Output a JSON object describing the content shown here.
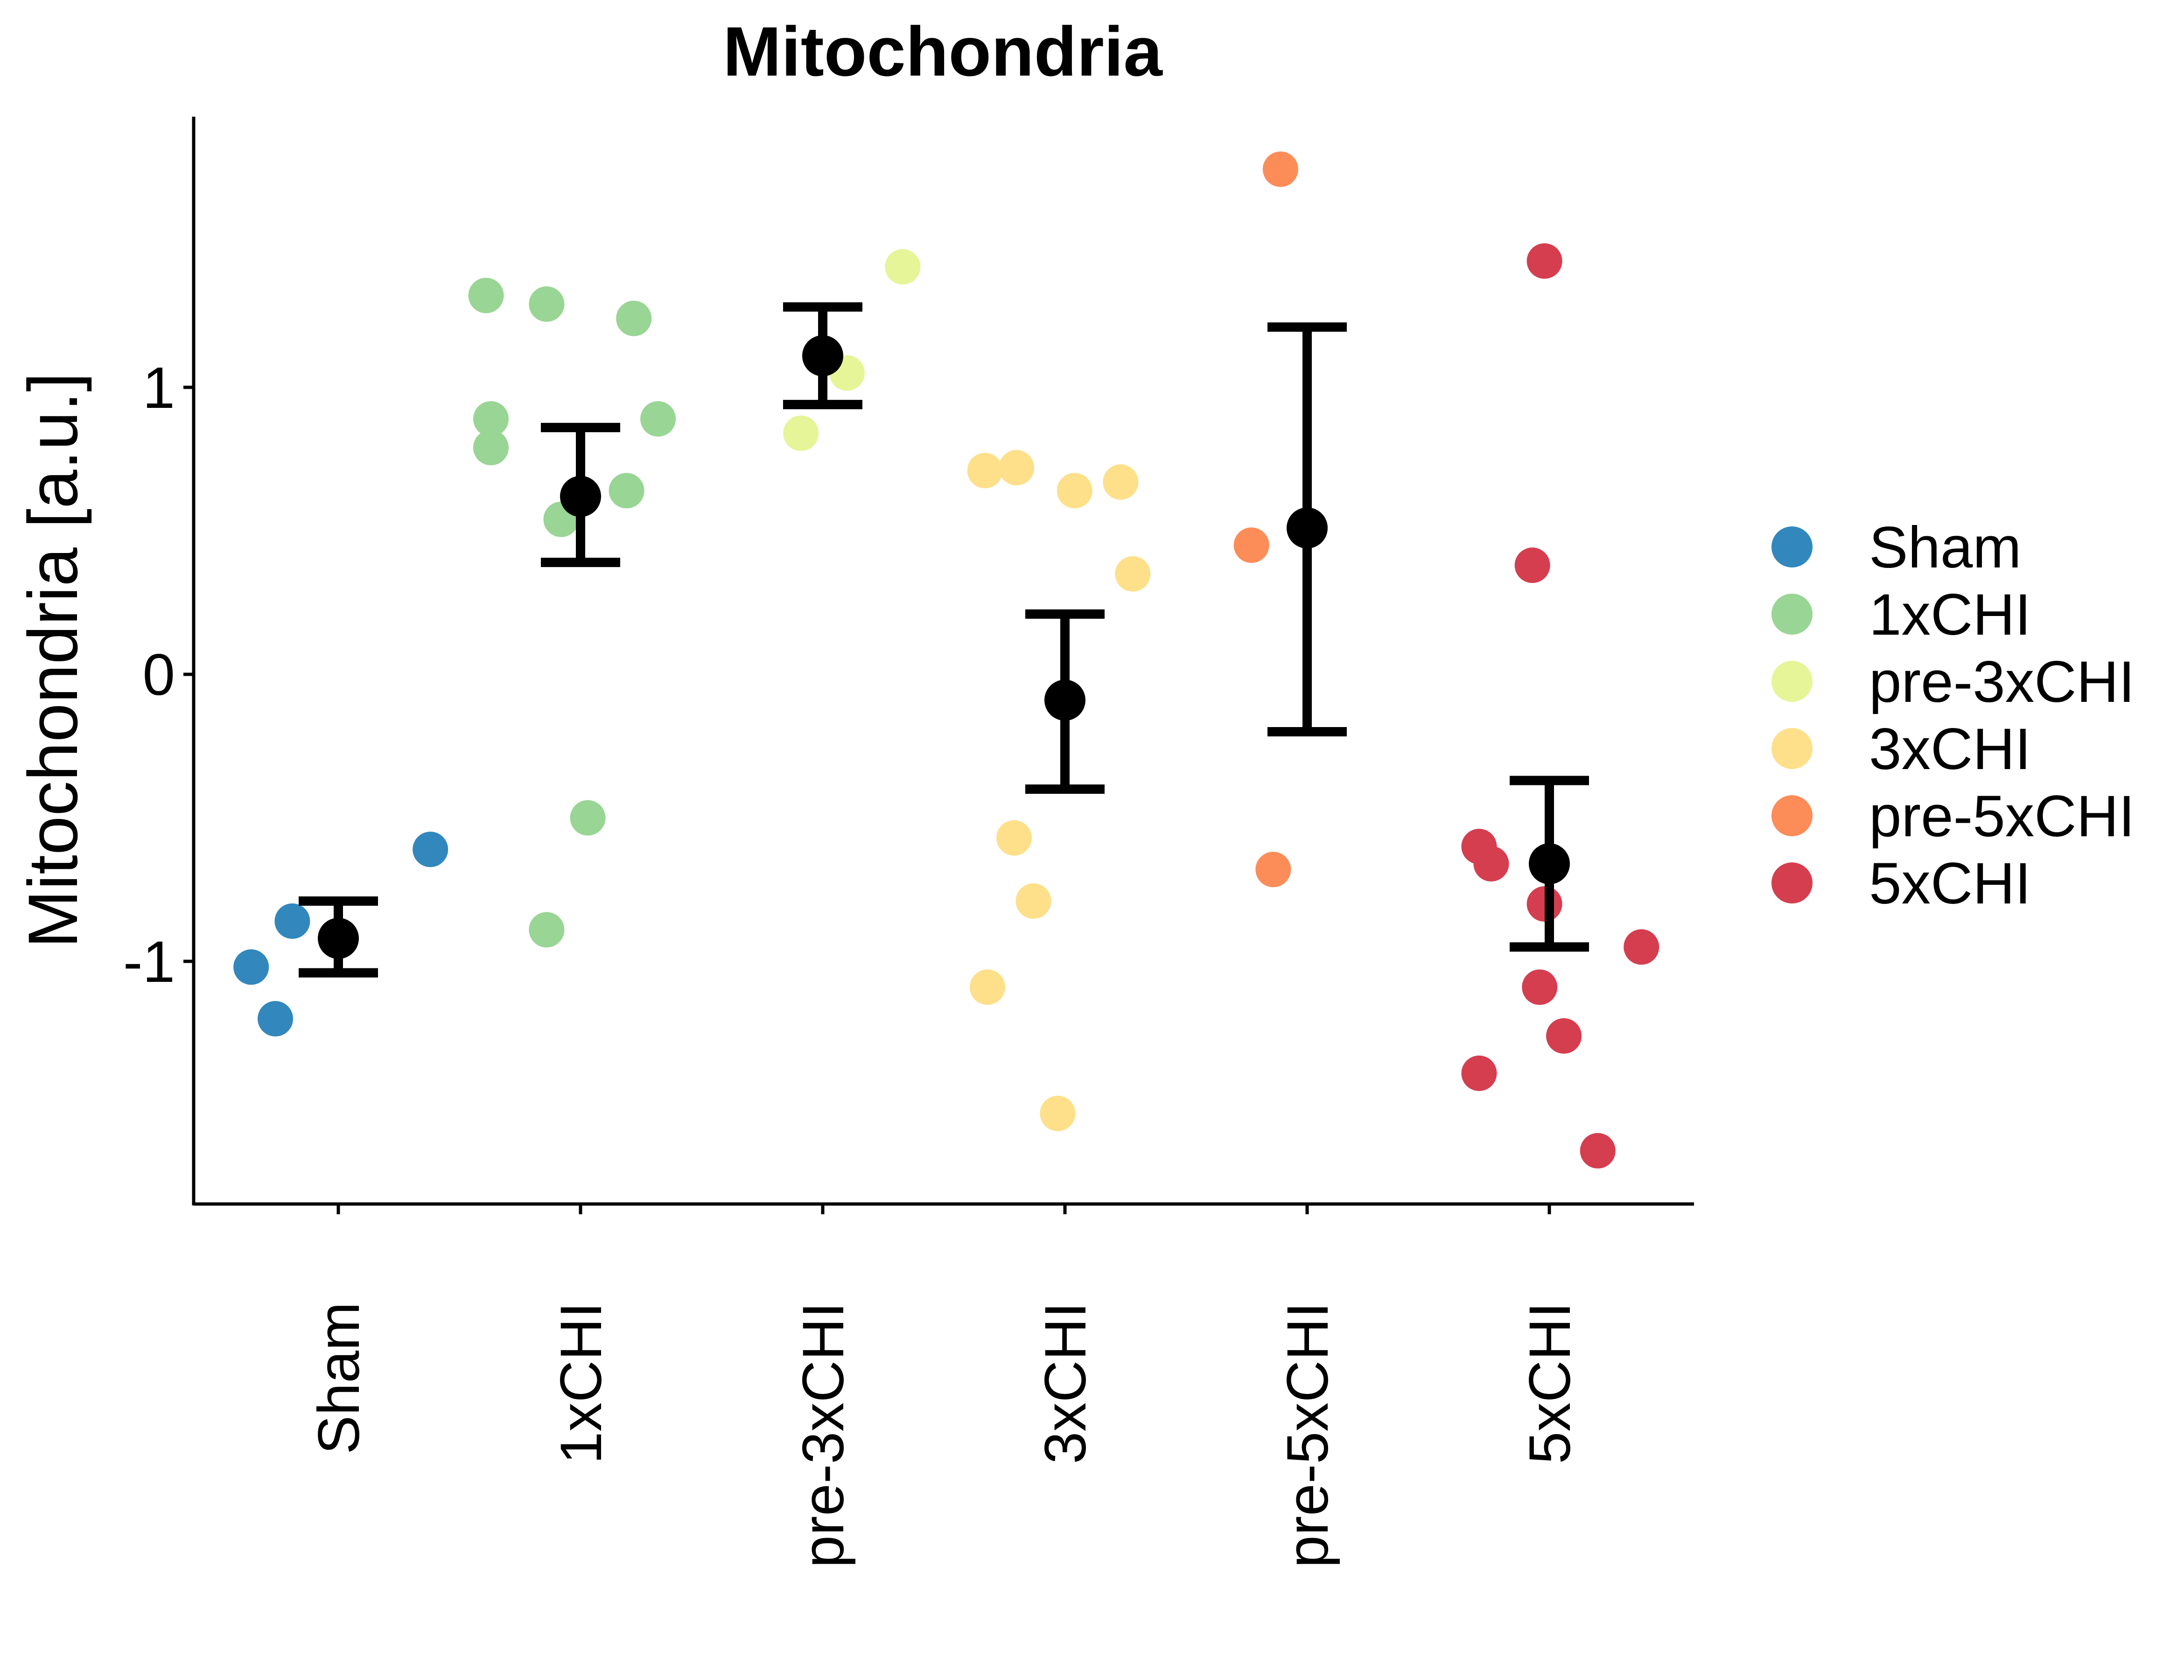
{
  "chart_data": {
    "type": "scatter",
    "title": "Mitochondria",
    "xlabel": "",
    "ylabel": "Mitochondria [a.u.]",
    "ylim": [
      -1.85,
      1.9
    ],
    "yticks": [
      -1,
      0,
      1
    ],
    "ytick_labels": [
      "-1",
      "0",
      "1"
    ],
    "categories": [
      "Sham",
      "1xCHI",
      "pre-3xCHI",
      "3xCHI",
      "pre-5xCHI",
      "5xCHI"
    ],
    "legend_position": "right",
    "grid": false,
    "series": [
      {
        "name": "Sham",
        "color": "#3288bd",
        "points": [
          {
            "jitter": -0.36,
            "y": -1.02
          },
          {
            "jitter": -0.26,
            "y": -1.2
          },
          {
            "jitter": -0.19,
            "y": -0.86
          },
          {
            "jitter": 0.38,
            "y": -0.61
          }
        ],
        "mean": -0.92,
        "err_low": -1.04,
        "err_high": -0.79
      },
      {
        "name": "1xCHI",
        "color": "#99d594",
        "points": [
          {
            "jitter": -0.39,
            "y": 1.32
          },
          {
            "jitter": -0.14,
            "y": 1.29
          },
          {
            "jitter": 0.22,
            "y": 1.24
          },
          {
            "jitter": -0.37,
            "y": 0.89
          },
          {
            "jitter": -0.37,
            "y": 0.79
          },
          {
            "jitter": 0.32,
            "y": 0.89
          },
          {
            "jitter": 0.19,
            "y": 0.64
          },
          {
            "jitter": -0.08,
            "y": 0.54
          },
          {
            "jitter": 0.03,
            "y": -0.5
          },
          {
            "jitter": -0.14,
            "y": -0.89
          }
        ],
        "mean": 0.62,
        "err_low": 0.39,
        "err_high": 0.86
      },
      {
        "name": "pre-3xCHI",
        "color": "#e6f598",
        "points": [
          {
            "jitter": 0.33,
            "y": 1.42
          },
          {
            "jitter": 0.1,
            "y": 1.05
          },
          {
            "jitter": -0.09,
            "y": 0.84
          }
        ],
        "mean": 1.11,
        "err_low": 0.94,
        "err_high": 1.28
      },
      {
        "name": "3xCHI",
        "color": "#fee08b",
        "points": [
          {
            "jitter": -0.33,
            "y": 0.71
          },
          {
            "jitter": -0.2,
            "y": 0.72
          },
          {
            "jitter": 0.04,
            "y": 0.64
          },
          {
            "jitter": 0.23,
            "y": 0.67
          },
          {
            "jitter": 0.28,
            "y": 0.35
          },
          {
            "jitter": -0.21,
            "y": -0.57
          },
          {
            "jitter": -0.13,
            "y": -0.79
          },
          {
            "jitter": -0.32,
            "y": -1.09
          },
          {
            "jitter": -0.03,
            "y": -1.53
          }
        ],
        "mean": -0.09,
        "err_low": -0.4,
        "err_high": 0.21
      },
      {
        "name": "pre-5xCHI",
        "color": "#fc8d59",
        "points": [
          {
            "jitter": -0.11,
            "y": 1.76
          },
          {
            "jitter": -0.23,
            "y": 0.45
          },
          {
            "jitter": -0.14,
            "y": -0.68
          }
        ],
        "mean": 0.51,
        "err_low": -0.2,
        "err_high": 1.21
      },
      {
        "name": "5xCHI",
        "color": "#d53e4f",
        "points": [
          {
            "jitter": -0.02,
            "y": 1.44
          },
          {
            "jitter": -0.07,
            "y": 0.38
          },
          {
            "jitter": -0.29,
            "y": -0.6
          },
          {
            "jitter": -0.24,
            "y": -0.66
          },
          {
            "jitter": -0.02,
            "y": -0.8
          },
          {
            "jitter": -0.04,
            "y": -1.09
          },
          {
            "jitter": 0.06,
            "y": -1.26
          },
          {
            "jitter": -0.29,
            "y": -1.39
          },
          {
            "jitter": 0.38,
            "y": -0.95
          },
          {
            "jitter": 0.2,
            "y": -1.66
          }
        ],
        "mean": -0.66,
        "err_low": -0.95,
        "err_high": -0.37
      }
    ]
  }
}
